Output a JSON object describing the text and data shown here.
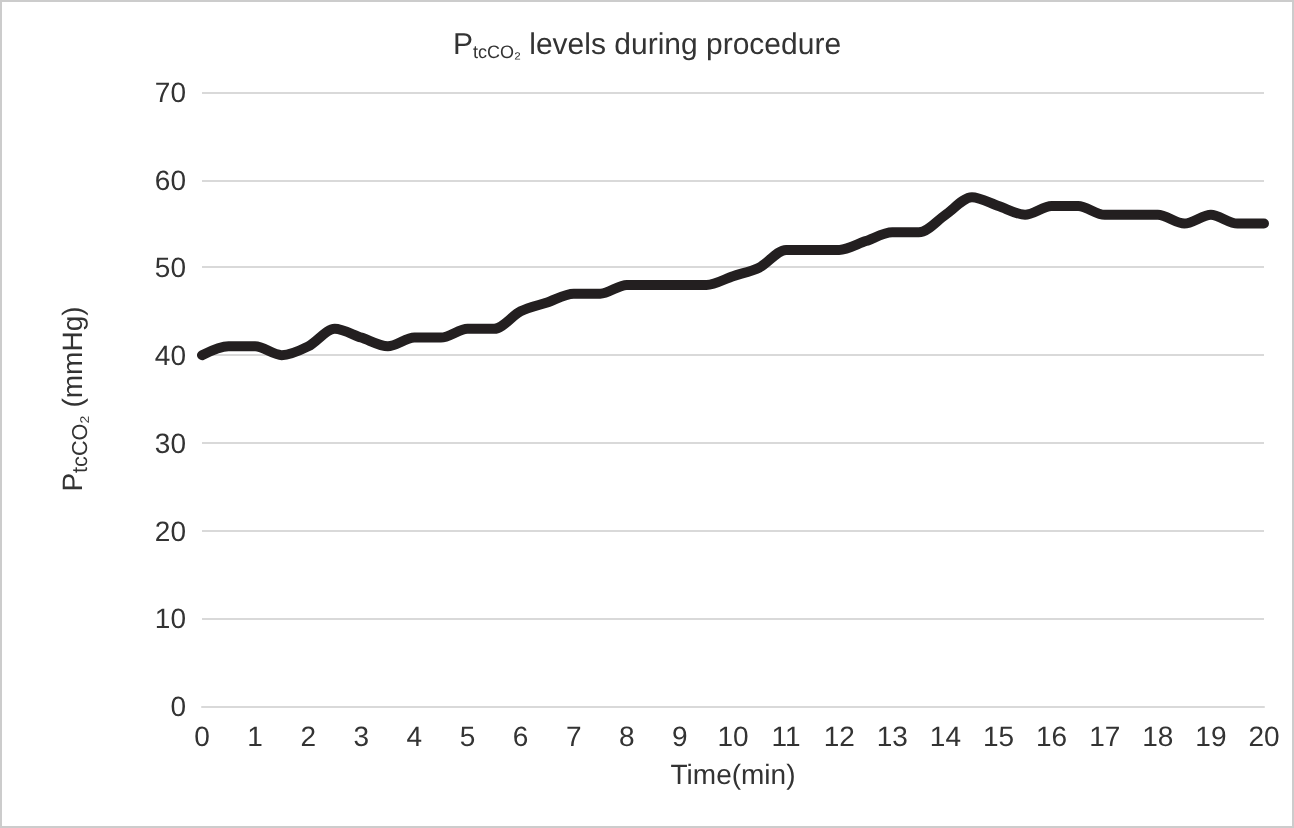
{
  "chart_data": {
    "type": "line",
    "title": "P$_{tcCO₂}$ levels during procedure",
    "xlabel": "Time(min)",
    "ylabel": "P$_{tcCO₂}$ (mmHg)",
    "x": [
      0,
      0.5,
      1,
      1.5,
      2,
      2.5,
      3,
      3.5,
      4,
      4.5,
      5,
      5.5,
      6,
      6.5,
      7,
      7.5,
      8,
      8.5,
      9,
      9.5,
      10,
      10.5,
      11,
      11.5,
      12,
      12.5,
      13,
      13.5,
      14,
      14.5,
      15,
      15.5,
      16,
      16.5,
      17,
      17.5,
      18,
      18.5,
      19,
      19.5,
      20
    ],
    "series": [
      {
        "color": "#231f20",
        "values": [
          40,
          41,
          41,
          40,
          41,
          43,
          42,
          41,
          42,
          42,
          43,
          43,
          45,
          46,
          47,
          47,
          48,
          48,
          48,
          48,
          49,
          50,
          52,
          52,
          52,
          53,
          54,
          54,
          56,
          58,
          57,
          56,
          57,
          57,
          56,
          56,
          56,
          55,
          56,
          55,
          55
        ]
      }
    ],
    "xlim": [
      0,
      20
    ],
    "xticks": [
      0,
      1,
      2,
      3,
      4,
      5,
      6,
      7,
      8,
      9,
      10,
      11,
      12,
      13,
      14,
      15,
      16,
      17,
      18,
      19,
      20
    ],
    "ylim": [
      0,
      70
    ],
    "yticks": [
      0,
      10,
      20,
      30,
      40,
      50,
      60,
      70
    ],
    "grid": "y",
    "marker": "none",
    "line_style": "solid"
  }
}
